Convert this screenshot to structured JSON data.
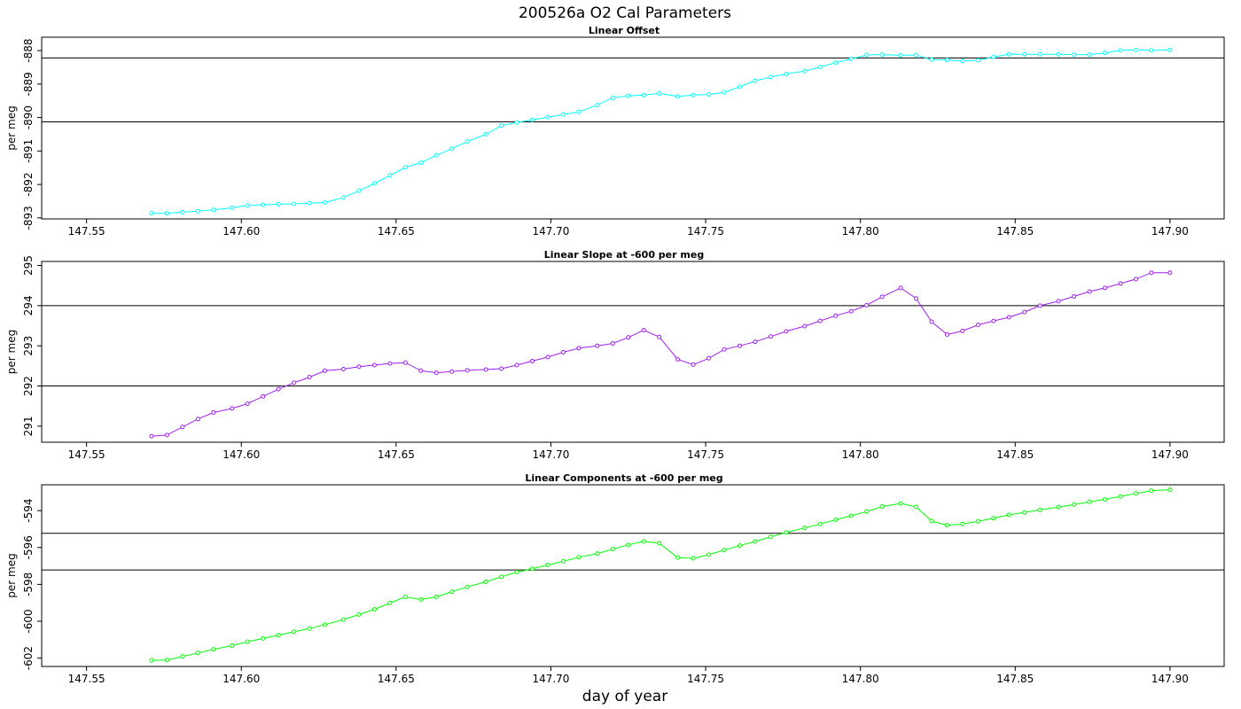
{
  "figure": {
    "title": "200526a   O2 Cal Parameters",
    "xlabel": "day of year"
  },
  "chart_data": [
    {
      "type": "line",
      "title": "Linear Offset",
      "ylabel": "per meg",
      "color": "#00ffff",
      "xlim": [
        147.5355,
        147.9175
      ],
      "ylim": [
        -893.03,
        -887.6
      ],
      "yticks": [
        -888,
        -889,
        -890,
        -891,
        -892,
        -893
      ],
      "xticks": [
        147.55,
        147.6,
        147.65,
        147.7,
        147.75,
        147.8,
        147.85,
        147.9
      ],
      "reference_lines": [
        -888.22,
        -890.13
      ],
      "series": [
        {
          "x": [
            147.571,
            147.576,
            147.581,
            147.586,
            147.591,
            147.597,
            147.602,
            147.607,
            147.612,
            147.617,
            147.622,
            147.627,
            147.633,
            147.638,
            147.643,
            147.648,
            147.653,
            147.658,
            147.663,
            147.668,
            147.673,
            147.679,
            147.684,
            147.689,
            147.694,
            147.699,
            147.704,
            147.709,
            147.715,
            147.72,
            147.725,
            147.73,
            147.735,
            147.741,
            147.746,
            147.751,
            147.756,
            147.761,
            147.766,
            147.771,
            147.776,
            147.782,
            147.787,
            147.792,
            147.797,
            147.802,
            147.807,
            147.813,
            147.818,
            147.823,
            147.828,
            147.833,
            147.838,
            147.843,
            147.848,
            147.853,
            147.858,
            147.864,
            147.869,
            147.874,
            147.879,
            147.884,
            147.889,
            147.894,
            147.9
          ],
          "y": [
            -892.86,
            -892.86,
            -892.83,
            -892.8,
            -892.76,
            -892.7,
            -892.63,
            -892.61,
            -892.59,
            -892.58,
            -892.56,
            -892.54,
            -892.39,
            -892.19,
            -891.97,
            -891.73,
            -891.49,
            -891.35,
            -891.13,
            -890.93,
            -890.72,
            -890.5,
            -890.24,
            -890.15,
            -890.07,
            -889.99,
            -889.91,
            -889.83,
            -889.63,
            -889.41,
            -889.35,
            -889.33,
            -889.28,
            -889.37,
            -889.33,
            -889.31,
            -889.25,
            -889.08,
            -888.9,
            -888.79,
            -888.7,
            -888.61,
            -888.49,
            -888.36,
            -888.25,
            -888.13,
            -888.12,
            -888.14,
            -888.13,
            -888.27,
            -888.28,
            -888.31,
            -888.29,
            -888.19,
            -888.11,
            -888.11,
            -888.11,
            -888.11,
            -888.12,
            -888.12,
            -888.07,
            -887.99,
            -887.98,
            -887.99,
            -887.98
          ]
        }
      ]
    },
    {
      "type": "line",
      "title": "Linear Slope at -600 per meg",
      "ylabel": "per meg",
      "color": "#a020f0",
      "xlim": [
        147.5355,
        147.9175
      ],
      "ylim": [
        290.6,
        295.1
      ],
      "yticks": [
        295,
        294,
        293,
        292,
        291
      ],
      "xticks": [
        147.55,
        147.6,
        147.65,
        147.7,
        147.75,
        147.8,
        147.85,
        147.9
      ],
      "reference_lines": [
        294.0,
        292.0
      ],
      "series": [
        {
          "x": [
            147.571,
            147.576,
            147.581,
            147.586,
            147.591,
            147.597,
            147.602,
            147.607,
            147.612,
            147.617,
            147.622,
            147.627,
            147.633,
            147.638,
            147.643,
            147.648,
            147.653,
            147.658,
            147.663,
            147.668,
            147.673,
            147.679,
            147.684,
            147.689,
            147.694,
            147.699,
            147.704,
            147.709,
            147.715,
            147.72,
            147.725,
            147.73,
            147.735,
            147.741,
            147.746,
            147.751,
            147.756,
            147.761,
            147.766,
            147.771,
            147.776,
            147.782,
            147.787,
            147.792,
            147.797,
            147.802,
            147.807,
            147.813,
            147.818,
            147.823,
            147.828,
            147.833,
            147.838,
            147.843,
            147.848,
            147.853,
            147.858,
            147.864,
            147.869,
            147.874,
            147.879,
            147.884,
            147.889,
            147.894,
            147.9
          ],
          "y": [
            290.75,
            290.78,
            290.98,
            291.18,
            291.34,
            291.44,
            291.56,
            291.74,
            291.92,
            292.08,
            292.22,
            292.38,
            292.42,
            292.48,
            292.52,
            292.56,
            292.58,
            292.38,
            292.33,
            292.36,
            292.39,
            292.41,
            292.43,
            292.52,
            292.62,
            292.72,
            292.84,
            292.94,
            293.0,
            293.06,
            293.21,
            293.39,
            293.22,
            292.66,
            292.53,
            292.69,
            292.91,
            293.0,
            293.1,
            293.23,
            293.36,
            293.49,
            293.62,
            293.75,
            293.86,
            294.01,
            294.22,
            294.44,
            294.18,
            293.6,
            293.28,
            293.37,
            293.52,
            293.62,
            293.71,
            293.84,
            294.0,
            294.11,
            294.23,
            294.35,
            294.44,
            294.55,
            294.66,
            294.82,
            294.82
          ]
        }
      ]
    },
    {
      "type": "line",
      "title": "Linear Components at -600 per meg",
      "ylabel": "per meg",
      "color": "#00ff00",
      "xlim": [
        147.5355,
        147.9175
      ],
      "ylim": [
        -602.45,
        -592.6
      ],
      "yticks": [
        -594,
        -596,
        -598,
        -600,
        -602
      ],
      "xticks": [
        147.55,
        147.6,
        147.65,
        147.7,
        147.75,
        147.8,
        147.85,
        147.9
      ],
      "reference_lines": [
        -595.23,
        -597.22
      ],
      "series": [
        {
          "x": [
            147.571,
            147.576,
            147.581,
            147.586,
            147.591,
            147.597,
            147.602,
            147.607,
            147.612,
            147.617,
            147.622,
            147.627,
            147.633,
            147.638,
            147.643,
            147.648,
            147.653,
            147.658,
            147.663,
            147.668,
            147.673,
            147.679,
            147.684,
            147.689,
            147.694,
            147.699,
            147.704,
            147.709,
            147.715,
            147.72,
            147.725,
            147.73,
            147.735,
            147.741,
            147.746,
            147.751,
            147.756,
            147.761,
            147.766,
            147.771,
            147.776,
            147.782,
            147.787,
            147.792,
            147.797,
            147.802,
            147.807,
            147.813,
            147.818,
            147.823,
            147.828,
            147.833,
            147.838,
            147.843,
            147.848,
            147.853,
            147.858,
            147.864,
            147.869,
            147.874,
            147.879,
            147.884,
            147.889,
            147.894,
            147.9
          ],
          "y": [
            -602.12,
            -602.1,
            -601.91,
            -601.72,
            -601.52,
            -601.32,
            -601.11,
            -600.93,
            -600.76,
            -600.57,
            -600.4,
            -600.18,
            -599.91,
            -599.64,
            -599.35,
            -599.01,
            -598.68,
            -598.82,
            -598.68,
            -598.4,
            -598.14,
            -597.86,
            -597.59,
            -597.34,
            -597.15,
            -596.95,
            -596.75,
            -596.53,
            -596.33,
            -596.09,
            -595.86,
            -595.67,
            -595.77,
            -596.55,
            -596.59,
            -596.39,
            -596.14,
            -595.9,
            -595.67,
            -595.43,
            -595.18,
            -594.94,
            -594.73,
            -594.5,
            -594.28,
            -594.05,
            -593.78,
            -593.61,
            -593.8,
            -594.57,
            -594.79,
            -594.73,
            -594.58,
            -594.41,
            -594.23,
            -594.1,
            -593.96,
            -593.81,
            -593.67,
            -593.53,
            -593.39,
            -593.23,
            -593.07,
            -592.92,
            -592.87
          ]
        }
      ]
    }
  ]
}
